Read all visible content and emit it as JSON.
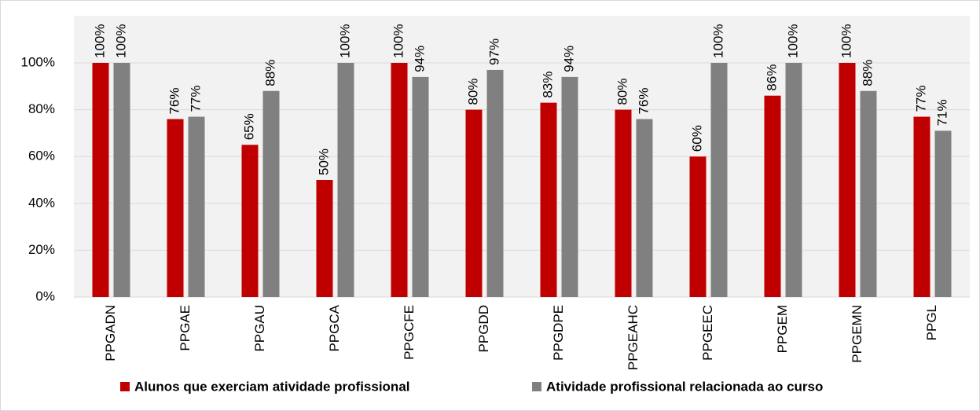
{
  "chart_data": {
    "type": "bar",
    "categories": [
      "PPGADN",
      "PPGAE",
      "PPGAU",
      "PPGCA",
      "PPGCFE",
      "PPGDD",
      "PPGDPE",
      "PPGEAHC",
      "PPGEEC",
      "PPGEM",
      "PPGEMN",
      "PPGL"
    ],
    "series": [
      {
        "name": "Alunos que exerciam atividade profissional",
        "color": "#c00000",
        "values": [
          100,
          76,
          65,
          50,
          100,
          80,
          83,
          80,
          60,
          86,
          100,
          77
        ],
        "value_labels": [
          "100%",
          "76%",
          "65%",
          "50%",
          "100%",
          "80%",
          "83%",
          "80%",
          "60%",
          "86%",
          "100%",
          "77%"
        ]
      },
      {
        "name": "Atividade profissional relacionada ao curso",
        "color": "#808080",
        "values": [
          100,
          77,
          88,
          100,
          94,
          97,
          94,
          76,
          100,
          100,
          88,
          71
        ],
        "value_labels": [
          "100%",
          "77%",
          "88%",
          "100%",
          "94%",
          "97%",
          "94%",
          "76%",
          "100%",
          "100%",
          "88%",
          "71%"
        ]
      }
    ],
    "ylim": [
      0,
      100
    ],
    "yticks": [
      {
        "value": 0,
        "label": "0%"
      },
      {
        "value": 20,
        "label": "20%"
      },
      {
        "value": 40,
        "label": "40%"
      },
      {
        "value": 60,
        "label": "60%"
      },
      {
        "value": 80,
        "label": "80%"
      },
      {
        "value": 100,
        "label": "100%"
      }
    ],
    "grid": true
  }
}
